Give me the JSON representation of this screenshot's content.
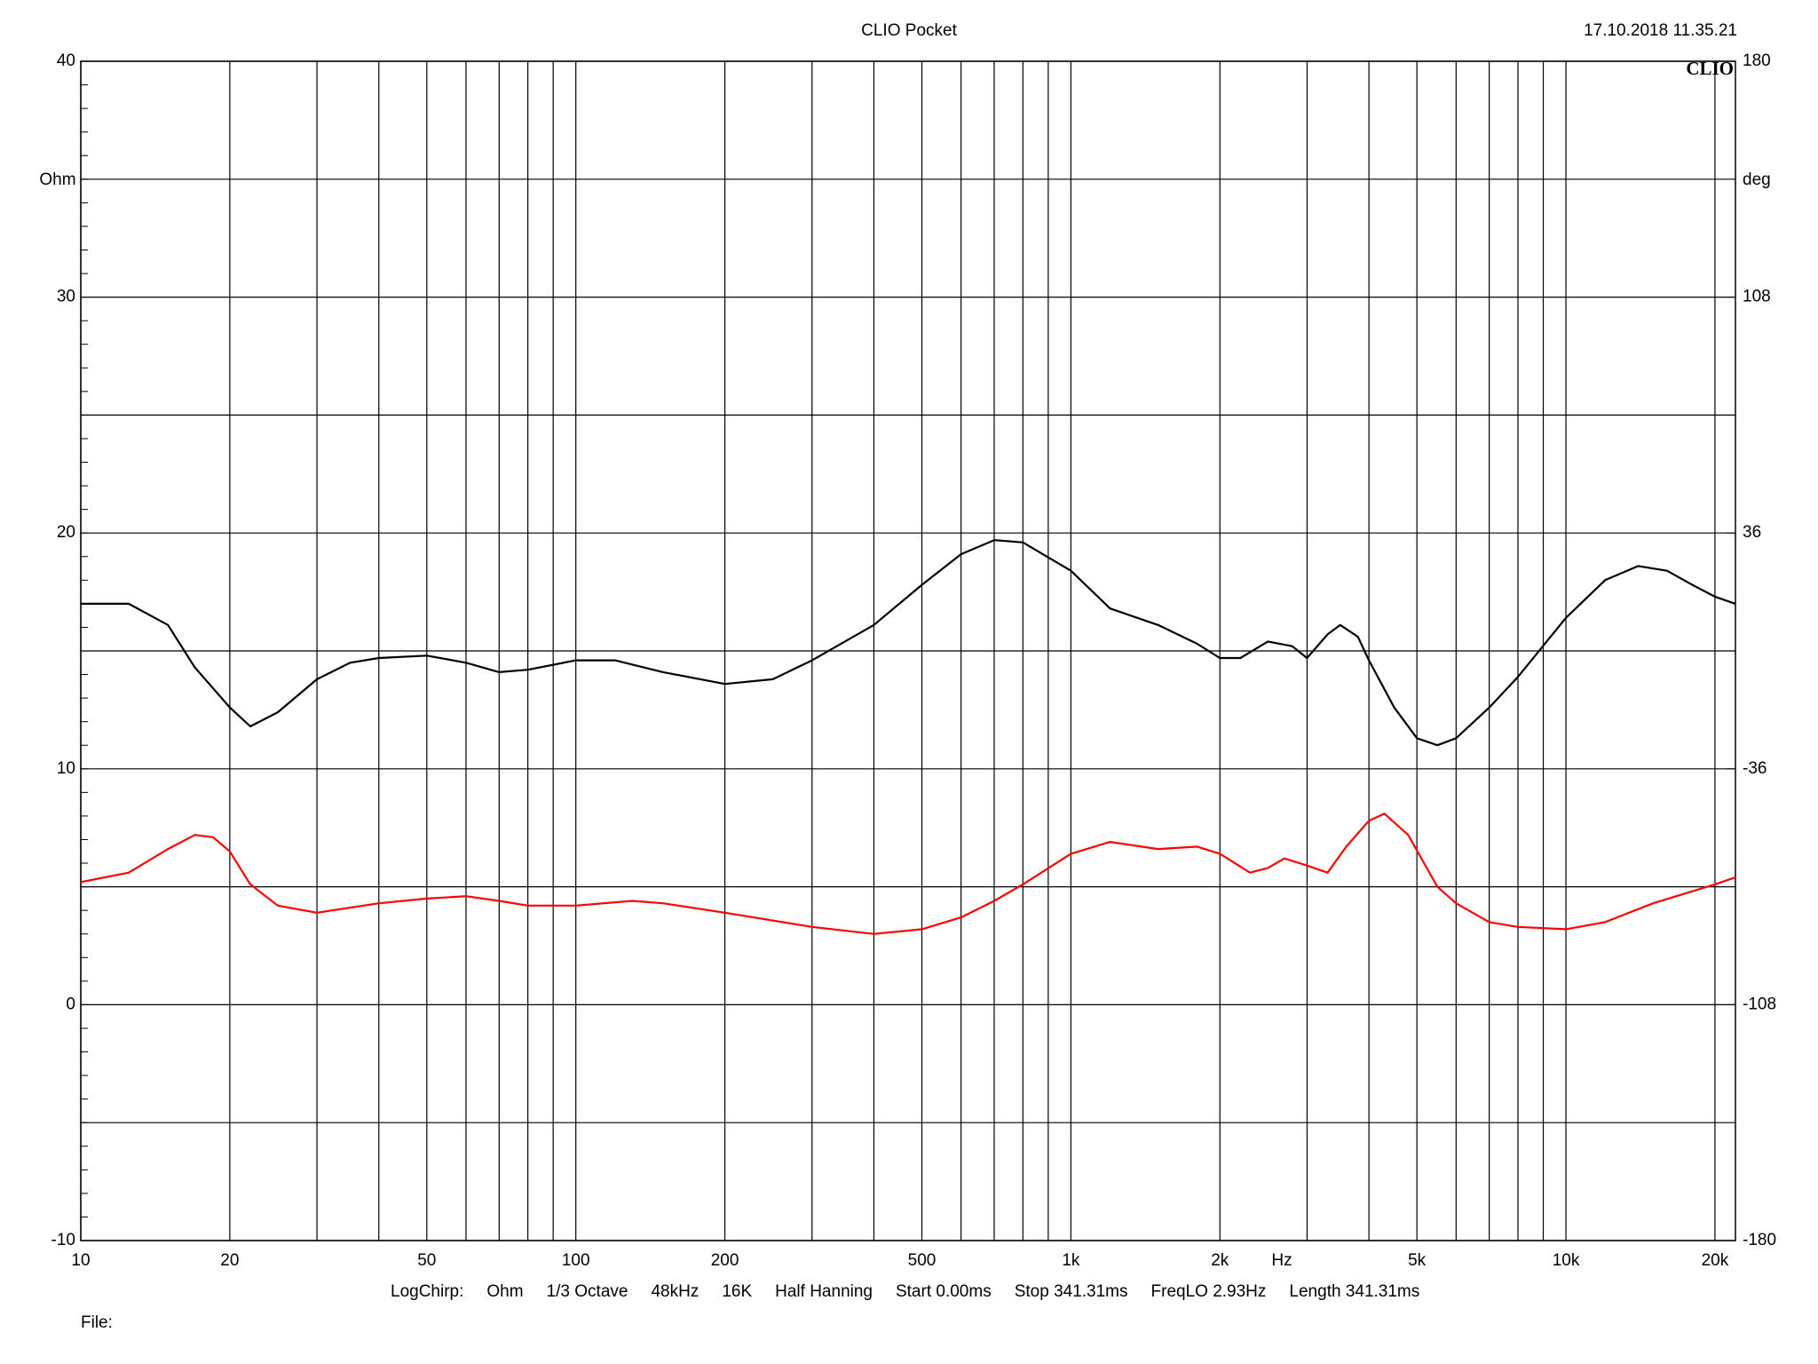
{
  "chart_data": {
    "type": "line",
    "title": "CLIO Pocket",
    "timestamp": "17.10.2018 11.35.21",
    "logo": "CLIO",
    "y_label": "Ohm",
    "y2_label": "deg",
    "x_label": "Hz",
    "log_x": true,
    "grid": true,
    "xlim": [
      10,
      22000
    ],
    "xticks": [
      10,
      20,
      50,
      100,
      200,
      500,
      {
        "value": 1000,
        "label": "1k"
      },
      {
        "value": 2000,
        "label": "2k"
      },
      {
        "value": 5000,
        "label": "5k"
      },
      {
        "value": 10000,
        "label": "10k"
      },
      {
        "value": 20000,
        "label": "20k"
      }
    ],
    "x_minor_grid": [
      30,
      40,
      60,
      70,
      80,
      90,
      300,
      400,
      600,
      700,
      800,
      900,
      3000,
      4000,
      6000,
      7000,
      8000,
      9000
    ],
    "ylim": [
      -10,
      40
    ],
    "yticks": [
      -10,
      0,
      10,
      20,
      30,
      40
    ],
    "y_minor_grid": [
      -5,
      5,
      15,
      25,
      35
    ],
    "y2lim": [
      -180,
      180
    ],
    "y2ticks": [
      -180,
      -108,
      -36,
      36,
      108,
      180
    ],
    "series": [
      {
        "color": "#000000",
        "x": [
          10,
          12.5,
          15,
          17,
          20,
          22,
          25,
          30,
          35,
          40,
          50,
          60,
          70,
          80,
          100,
          120,
          150,
          200,
          250,
          300,
          400,
          500,
          600,
          700,
          800,
          1000,
          1200,
          1500,
          1800,
          2000,
          2200,
          2500,
          2800,
          3000,
          3300,
          3500,
          3800,
          4000,
          4500,
          5000,
          5500,
          6000,
          7000,
          8000,
          10000,
          12000,
          14000,
          16000,
          18000,
          20000,
          22000
        ],
        "values": [
          17.0,
          17.0,
          16.1,
          14.3,
          12.6,
          11.8,
          12.4,
          13.8,
          14.5,
          14.7,
          14.8,
          14.5,
          14.1,
          14.2,
          14.6,
          14.6,
          14.1,
          13.6,
          13.8,
          14.6,
          16.1,
          17.8,
          19.1,
          19.7,
          19.6,
          18.4,
          16.8,
          16.1,
          15.3,
          14.7,
          14.7,
          15.4,
          15.2,
          14.7,
          15.7,
          16.1,
          15.6,
          14.6,
          12.6,
          11.3,
          11.0,
          11.3,
          12.6,
          13.9,
          16.4,
          18.0,
          18.6,
          18.4,
          17.8,
          17.3,
          17.0
        ]
      },
      {
        "color": "#ff0000",
        "x": [
          10,
          12.5,
          15,
          17,
          18.5,
          20,
          22,
          25,
          30,
          40,
          50,
          60,
          70,
          80,
          100,
          130,
          150,
          200,
          300,
          400,
          500,
          600,
          700,
          800,
          1000,
          1200,
          1500,
          1800,
          2000,
          2300,
          2500,
          2700,
          3000,
          3300,
          3600,
          4000,
          4300,
          4800,
          5500,
          6000,
          7000,
          8000,
          10000,
          12000,
          15000,
          20000,
          22000
        ],
        "values": [
          5.2,
          5.6,
          6.6,
          7.2,
          7.1,
          6.5,
          5.1,
          4.2,
          3.9,
          4.3,
          4.5,
          4.6,
          4.4,
          4.2,
          4.2,
          4.4,
          4.3,
          3.9,
          3.3,
          3.0,
          3.2,
          3.7,
          4.4,
          5.1,
          6.4,
          6.9,
          6.6,
          6.7,
          6.4,
          5.6,
          5.8,
          6.2,
          5.9,
          5.6,
          6.7,
          7.8,
          8.1,
          7.2,
          5.0,
          4.3,
          3.5,
          3.3,
          3.2,
          3.5,
          4.3,
          5.1,
          5.4
        ]
      }
    ],
    "footer": [
      "LogChirp:",
      "Ohm",
      "1/3 Octave",
      "48kHz",
      "16K",
      "Half Hanning",
      "Start 0.00ms",
      "Stop 341.31ms",
      "FreqLO 2.93Hz",
      "Length 341.31ms"
    ],
    "file_label": "File:"
  }
}
